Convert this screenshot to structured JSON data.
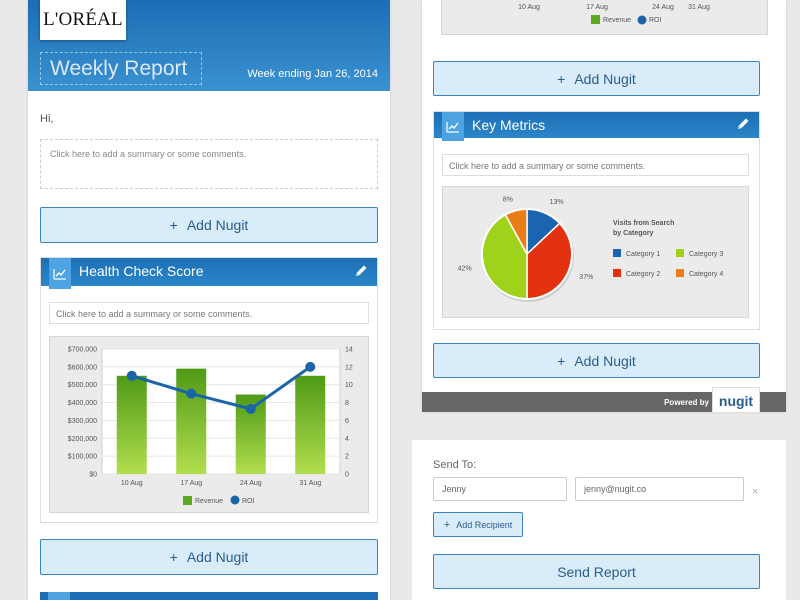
{
  "report": {
    "brand": "L'ORÉAL",
    "title": "Weekly Report",
    "week_ending": "Week ending Jan 26, 2014",
    "greeting": "Hi,",
    "summary_placeholder": "Click here to add a summary or some comments."
  },
  "buttons": {
    "add_nugit": "Add Nugit",
    "add_recipient": "Add Recipient",
    "send_report": "Send Report"
  },
  "health_widget": {
    "title": "Health Check Score",
    "summary_placeholder": "Click here to add a summary or some comments."
  },
  "key_metrics_widget": {
    "title": "Key Metrics",
    "summary_placeholder": "Click here to add a summary or some comments."
  },
  "top_chart_fragment": {
    "categories": [
      "10 Aug",
      "17 Aug",
      "24 Aug",
      "31 Aug"
    ],
    "legend": [
      "Revenue",
      "ROI"
    ]
  },
  "powered_by": "Powered by",
  "nugit_logo": "nugit",
  "send": {
    "label": "Send To:",
    "name_value": "Jenny",
    "email_value": "jenny@nugit.co",
    "remove_glyph": "×"
  },
  "colors": {
    "header_blue": "#1d6fb5",
    "bar_green": "#5fa822",
    "roi_blue": "#1c64a8",
    "pie_blue": "#1b64b0",
    "pie_red": "#e2320f",
    "pie_green": "#9fd21a",
    "pie_orange": "#ea7d16"
  },
  "chart_data": [
    {
      "type": "bar",
      "categories": [
        "10 Aug",
        "17 Aug",
        "24 Aug",
        "31 Aug"
      ],
      "series": [
        {
          "name": "Revenue",
          "type": "bar",
          "axis": "left",
          "values": [
            550000,
            590000,
            445000,
            550000
          ]
        },
        {
          "name": "ROI",
          "type": "line",
          "axis": "right",
          "values": [
            11,
            9,
            7.3,
            12
          ]
        }
      ],
      "ylim": [
        0,
        700000
      ],
      "y2lim": [
        0,
        14
      ],
      "yticks": [
        "$0",
        "$100,000",
        "$200,000",
        "$300,000",
        "$400,000",
        "$500,000",
        "$600,000",
        "$700,000"
      ],
      "y2ticks": [
        "0",
        "2",
        "4",
        "6",
        "8",
        "10",
        "12",
        "14"
      ],
      "legend_position": "bottom",
      "grid": true
    },
    {
      "type": "pie",
      "title": "Visits from Search by Category",
      "slices": [
        {
          "name": "Category 1",
          "value": 13,
          "label": "13%"
        },
        {
          "name": "Category 2",
          "value": 37,
          "label": "37%"
        },
        {
          "name": "Category 3",
          "value": 42,
          "label": "42%"
        },
        {
          "name": "Category 4",
          "value": 8,
          "label": "8%"
        }
      ],
      "legend_position": "right"
    }
  ]
}
